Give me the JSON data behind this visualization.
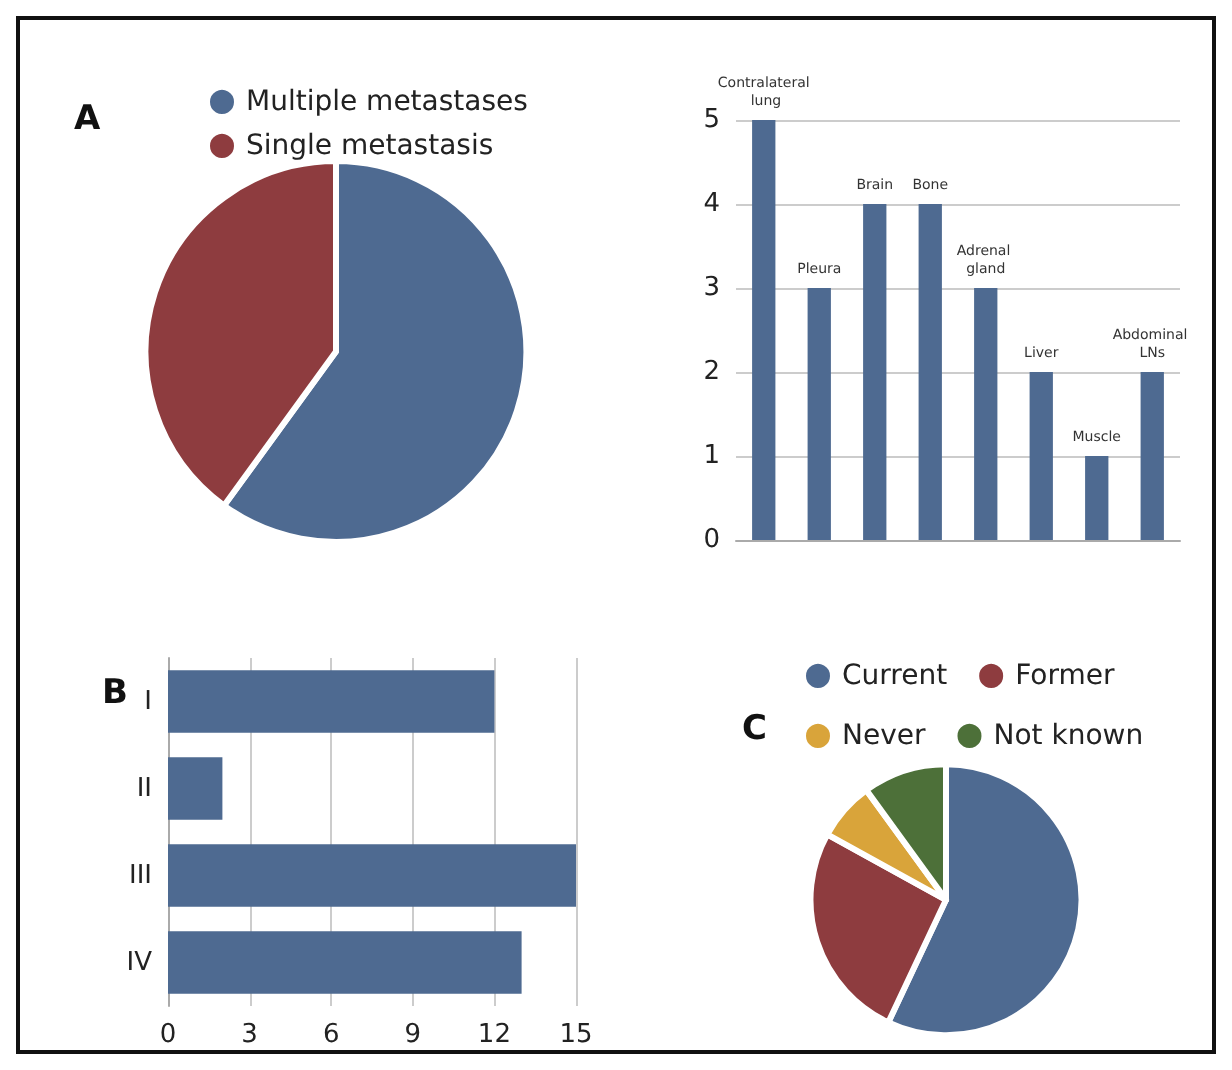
{
  "chart_data": [
    {
      "type": "pie",
      "title": "A",
      "categories": [
        "Multiple metastases",
        "Single metastasis"
      ],
      "values": [
        60,
        40
      ],
      "colors": [
        "#4e6a91",
        "#8e3c3f"
      ],
      "legend": "top"
    },
    {
      "type": "bar",
      "categories": [
        "Contralateral lung",
        "Pleura",
        "Brain",
        "Bone",
        "Adrenal gland",
        "Liver",
        "Muscle",
        "Abdominal LNs"
      ],
      "values": [
        5,
        3,
        4,
        4,
        3,
        2,
        1,
        2
      ],
      "color": "#4e6a91",
      "ylim": [
        0,
        5
      ],
      "yticks": [
        0,
        1,
        2,
        3,
        4,
        5
      ],
      "grid": "y"
    },
    {
      "type": "bar",
      "title": "B",
      "orientation": "horizontal",
      "categories": [
        "I",
        "II",
        "III",
        "IV"
      ],
      "values": [
        12,
        2,
        15,
        13
      ],
      "color": "#4e6a91",
      "xlim": [
        0,
        15
      ],
      "xticks": [
        0,
        3,
        6,
        9,
        12,
        15
      ],
      "grid": "x"
    },
    {
      "type": "pie",
      "title": "C",
      "categories": [
        "Current",
        "Former",
        "Never",
        "Not known"
      ],
      "values": [
        57,
        26,
        7,
        10
      ],
      "colors": [
        "#4e6a91",
        "#8e3c3f",
        "#d9a43a",
        "#4d7039"
      ],
      "legend": "top"
    }
  ]
}
